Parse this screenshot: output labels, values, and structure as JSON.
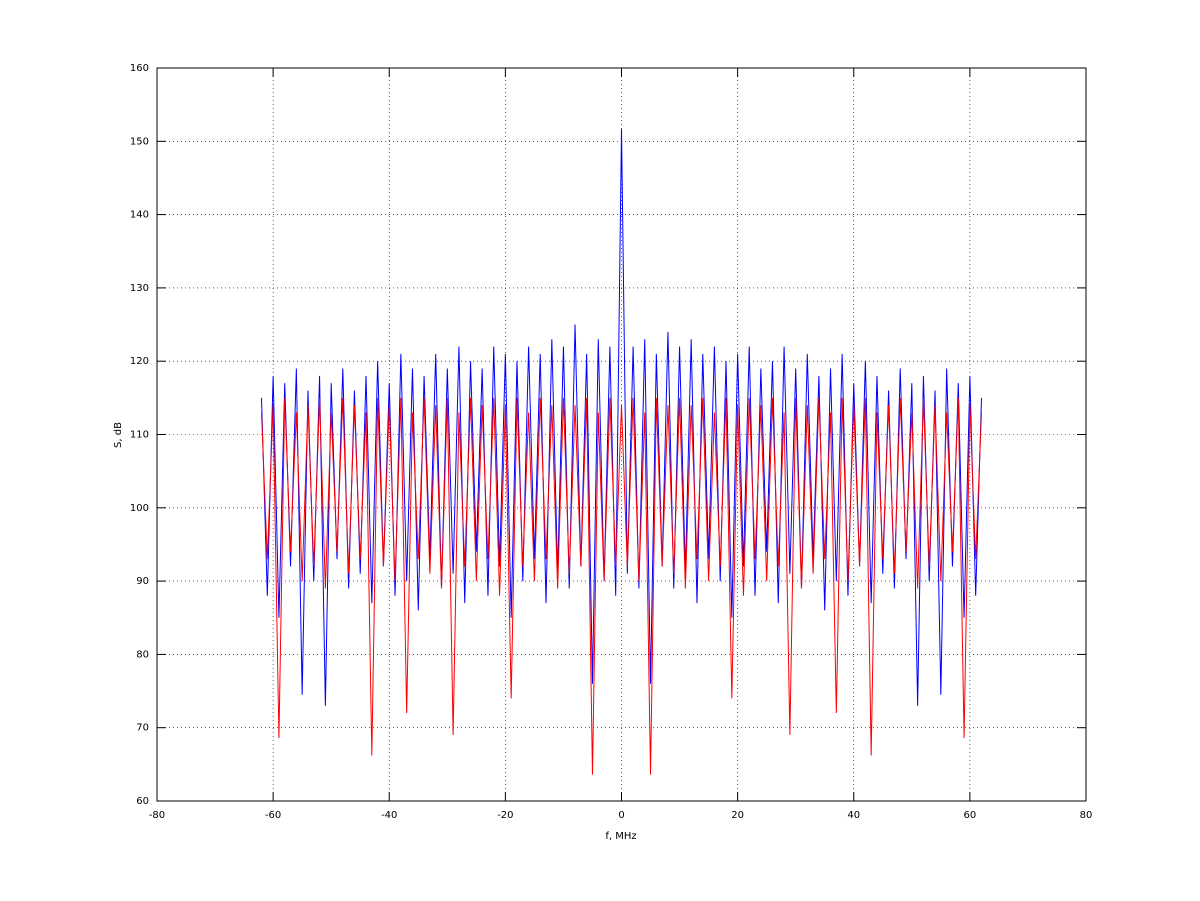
{
  "chart_data": {
    "type": "line",
    "xlabel": "f, MHz",
    "ylabel": "S, dB",
    "xlim": [
      -80,
      80
    ],
    "ylim": [
      60,
      160
    ],
    "xticks": [
      -80,
      -60,
      -40,
      -20,
      0,
      20,
      40,
      60,
      80
    ],
    "yticks": [
      60,
      70,
      80,
      90,
      100,
      110,
      120,
      130,
      140,
      150,
      160
    ],
    "grid": true,
    "x": [
      -62,
      -61,
      -60,
      -59,
      -58,
      -57,
      -56,
      -55,
      -54,
      -53,
      -52,
      -51,
      -50,
      -49,
      -48,
      -47,
      -46,
      -45,
      -44,
      -43,
      -42,
      -41,
      -40,
      -39,
      -38,
      -37,
      -36,
      -35,
      -34,
      -33,
      -32,
      -31,
      -30,
      -29,
      -28,
      -27,
      -26,
      -25,
      -24,
      -23,
      -22,
      -21,
      -20,
      -19,
      -18,
      -17,
      -16,
      -15,
      -14,
      -13,
      -12,
      -11,
      -10,
      -9,
      -8,
      -7,
      -6,
      -5,
      -4,
      -3,
      -2,
      -1,
      0,
      1,
      2,
      3,
      4,
      5,
      6,
      7,
      8,
      9,
      10,
      11,
      12,
      13,
      14,
      15,
      16,
      17,
      18,
      19,
      20,
      21,
      22,
      23,
      24,
      25,
      26,
      27,
      28,
      29,
      30,
      31,
      32,
      33,
      34,
      35,
      36,
      37,
      38,
      39,
      40,
      41,
      42,
      43,
      44,
      45,
      46,
      47,
      48,
      49,
      50,
      51,
      52,
      53,
      54,
      55,
      56,
      57,
      58,
      59,
      60,
      61,
      62
    ],
    "series": [
      {
        "color": "#0000ff",
        "values": [
          115,
          88,
          118,
          85,
          117,
          92,
          119,
          74.5,
          116,
          90,
          118,
          73,
          117,
          93,
          119,
          89,
          116,
          91,
          118,
          87,
          120,
          92,
          117,
          88,
          121,
          90,
          119,
          86,
          118,
          93,
          121,
          89,
          119,
          91,
          122,
          87,
          120,
          94,
          119,
          88,
          122,
          92,
          121,
          85,
          120,
          90,
          122,
          93,
          121,
          87,
          123,
          91,
          122,
          89,
          125,
          92,
          121,
          76,
          123,
          90,
          122,
          88,
          151.7,
          91,
          122,
          89,
          123,
          76,
          121,
          92,
          124,
          89,
          122,
          91,
          123,
          87,
          121,
          93,
          122,
          90,
          120,
          85,
          121,
          92,
          122,
          88,
          119,
          94,
          120,
          87,
          122,
          91,
          119,
          89,
          121,
          93,
          118,
          86,
          119,
          90,
          121,
          88,
          117,
          92,
          120,
          87,
          118,
          91,
          116,
          89,
          119,
          93,
          117,
          73,
          118,
          90,
          116,
          74.5,
          119,
          92,
          117,
          85,
          118,
          88,
          115
        ]
      },
      {
        "color": "#ff0000",
        "values": [
          113,
          93,
          114,
          68.6,
          115,
          94,
          113,
          90,
          114,
          92,
          115,
          89,
          113,
          94,
          115,
          91,
          114,
          93,
          113,
          66.2,
          115,
          92,
          114,
          90,
          115,
          72,
          113,
          93,
          115,
          91,
          114,
          89,
          115,
          69,
          113,
          92,
          115,
          90,
          114,
          93,
          115,
          88,
          114,
          74,
          115,
          92,
          113,
          90,
          115,
          93,
          114,
          89,
          115,
          91,
          114,
          92,
          115,
          63.6,
          113,
          90,
          115,
          92,
          114,
          92,
          115,
          90,
          113,
          63.6,
          115,
          92,
          114,
          91,
          115,
          89,
          114,
          93,
          115,
          90,
          113,
          92,
          115,
          74,
          114,
          88,
          115,
          93,
          114,
          90,
          115,
          92,
          113,
          69,
          115,
          89,
          114,
          91,
          115,
          93,
          113,
          72,
          115,
          90,
          114,
          92,
          115,
          66.2,
          113,
          93,
          114,
          91,
          115,
          94,
          113,
          89,
          115,
          92,
          114,
          90,
          113,
          94,
          115,
          68.6,
          114,
          93,
          113
        ]
      }
    ]
  }
}
